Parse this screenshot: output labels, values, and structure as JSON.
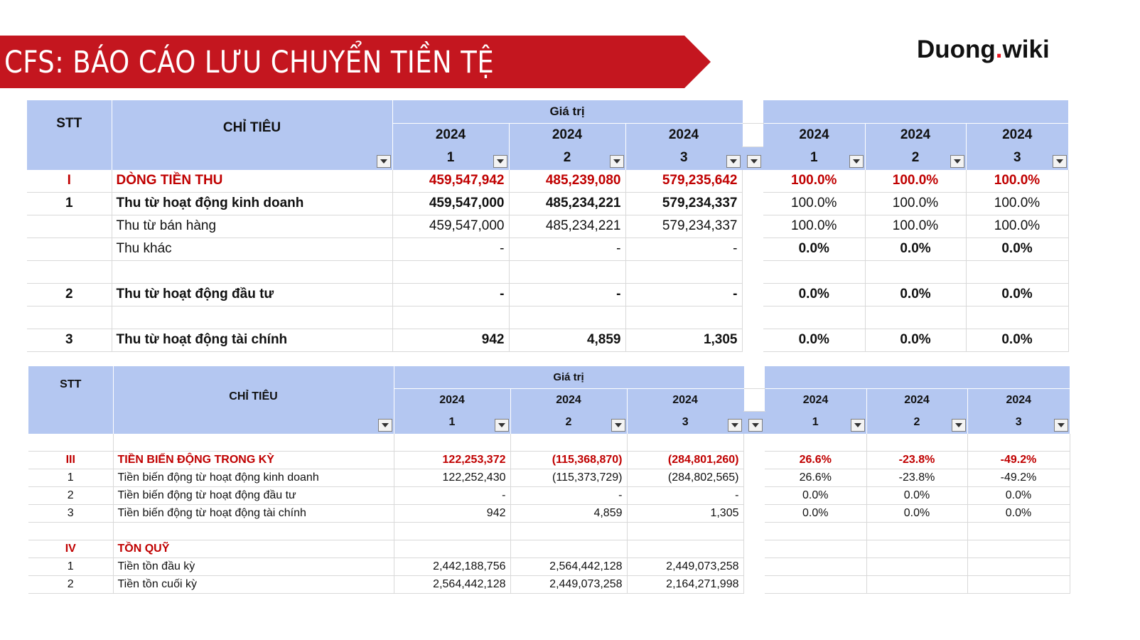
{
  "header": {
    "title": "CFS: BÁO CÁO LƯU CHUYỂN TIỀN TỆ",
    "brand_name": "Duong",
    "brand_dot": ".",
    "brand_tld": "wiki"
  },
  "columns": {
    "stt": "STT",
    "chi_tieu": "CHỈ TIÊU",
    "gia_tri": "Giá trị",
    "years": [
      "2024",
      "2024",
      "2024"
    ],
    "periods": [
      "1",
      "2",
      "3"
    ]
  },
  "table1": {
    "rows": [
      {
        "stt": "I",
        "label": "DÒNG TIỀN THU",
        "v": [
          "459,547,942",
          "485,239,080",
          "579,235,642"
        ],
        "p": [
          "100.0%",
          "100.0%",
          "100.0%"
        ]
      },
      {
        "stt": "1",
        "label": "Thu từ hoạt động kinh doanh",
        "v": [
          "459,547,000",
          "485,234,221",
          "579,234,337"
        ],
        "p": [
          "100.0%",
          "100.0%",
          "100.0%"
        ]
      },
      {
        "stt": "",
        "label": "Thu từ bán hàng",
        "v": [
          "459,547,000",
          "485,234,221",
          "579,234,337"
        ],
        "p": [
          "100.0%",
          "100.0%",
          "100.0%"
        ]
      },
      {
        "stt": "",
        "label": "Thu khác",
        "v": [
          "-",
          "-",
          "-"
        ],
        "p": [
          "0.0%",
          "0.0%",
          "0.0%"
        ]
      },
      {
        "stt": "",
        "label": "",
        "v": [
          "",
          "",
          ""
        ],
        "p": [
          "",
          "",
          ""
        ]
      },
      {
        "stt": "2",
        "label": "Thu từ hoạt động đầu tư",
        "v": [
          "-",
          "-",
          "-"
        ],
        "p": [
          "0.0%",
          "0.0%",
          "0.0%"
        ]
      },
      {
        "stt": "",
        "label": "",
        "v": [
          "",
          "",
          ""
        ],
        "p": [
          "",
          "",
          ""
        ]
      },
      {
        "stt": "3",
        "label": "Thu từ hoạt động tài chính",
        "v": [
          "942",
          "4,859",
          "1,305"
        ],
        "p": [
          "0.0%",
          "0.0%",
          "0.0%"
        ]
      }
    ]
  },
  "table2": {
    "rows": [
      {
        "stt": "",
        "label": "",
        "v": [
          "",
          "",
          ""
        ],
        "p": [
          "",
          "",
          ""
        ]
      },
      {
        "stt": "III",
        "label": "TIỀN BIẾN ĐỘNG TRONG KỲ",
        "v": [
          "122,253,372",
          "(115,368,870)",
          "(284,801,260)"
        ],
        "p": [
          "26.6%",
          "-23.8%",
          "-49.2%"
        ]
      },
      {
        "stt": "1",
        "label": "Tiền biến động từ hoạt động kinh doanh",
        "v": [
          "122,252,430",
          "(115,373,729)",
          "(284,802,565)"
        ],
        "p": [
          "26.6%",
          "-23.8%",
          "-49.2%"
        ]
      },
      {
        "stt": "2",
        "label": "Tiền biến động từ hoạt động đầu tư",
        "v": [
          "-",
          "-",
          "-"
        ],
        "p": [
          "0.0%",
          "0.0%",
          "0.0%"
        ]
      },
      {
        "stt": "3",
        "label": "Tiền biến động từ hoạt động tài chính",
        "v": [
          "942",
          "4,859",
          "1,305"
        ],
        "p": [
          "0.0%",
          "0.0%",
          "0.0%"
        ]
      },
      {
        "stt": "",
        "label": "",
        "v": [
          "",
          "",
          ""
        ],
        "p": [
          "",
          "",
          ""
        ]
      },
      {
        "stt": "IV",
        "label": "TỒN QUỸ",
        "v": [
          "",
          "",
          ""
        ],
        "p": [
          "",
          "",
          ""
        ]
      },
      {
        "stt": "1",
        "label": "Tiền tồn đầu kỳ",
        "v": [
          "2,442,188,756",
          "2,564,442,128",
          "2,449,073,258"
        ],
        "p": [
          "",
          "",
          ""
        ]
      },
      {
        "stt": "2",
        "label": "Tiền tồn cuối kỳ",
        "v": [
          "2,564,442,128",
          "2,449,073,258",
          "2,164,271,998"
        ],
        "p": [
          "",
          "",
          ""
        ]
      }
    ]
  },
  "colors": {
    "banner": "#c4161f",
    "header_fill": "#b4c7f1",
    "emphasis": "#c00000"
  }
}
